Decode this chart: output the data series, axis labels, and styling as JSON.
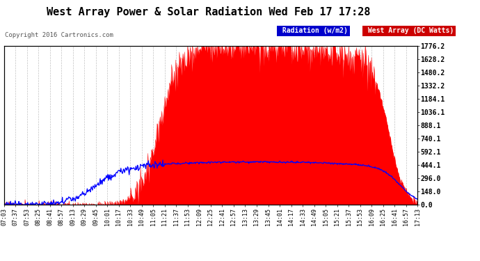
{
  "title": "West Array Power & Solar Radiation Wed Feb 17 17:28",
  "copyright": "Copyright 2016 Cartronics.com",
  "background_color": "#ffffff",
  "plot_bg_color": "#ffffff",
  "y_ticks": [
    0.0,
    148.0,
    296.0,
    444.1,
    592.1,
    740.1,
    888.1,
    1036.1,
    1184.1,
    1332.2,
    1480.2,
    1628.2,
    1776.2
  ],
  "x_labels": [
    "07:03",
    "07:37",
    "07:53",
    "08:25",
    "08:41",
    "08:57",
    "09:13",
    "09:29",
    "09:45",
    "10:01",
    "10:17",
    "10:33",
    "10:49",
    "11:05",
    "11:21",
    "11:37",
    "11:53",
    "12:09",
    "12:25",
    "12:41",
    "12:57",
    "13:13",
    "13:29",
    "13:45",
    "14:01",
    "14:17",
    "14:33",
    "14:49",
    "15:05",
    "15:21",
    "15:37",
    "15:53",
    "16:09",
    "16:25",
    "16:41",
    "16:57",
    "17:13"
  ],
  "fill_color": "#ff0000",
  "line_color": "#0000ff",
  "grid_color": "#bbbbbb",
  "ymax": 1776.2,
  "ymin": 0.0,
  "title_fontsize": 11,
  "copyright_fontsize": 6.5,
  "tick_fontsize": 6,
  "ytick_fontsize": 7,
  "legend_rad_bg": "#0000cc",
  "legend_west_bg": "#cc0000"
}
